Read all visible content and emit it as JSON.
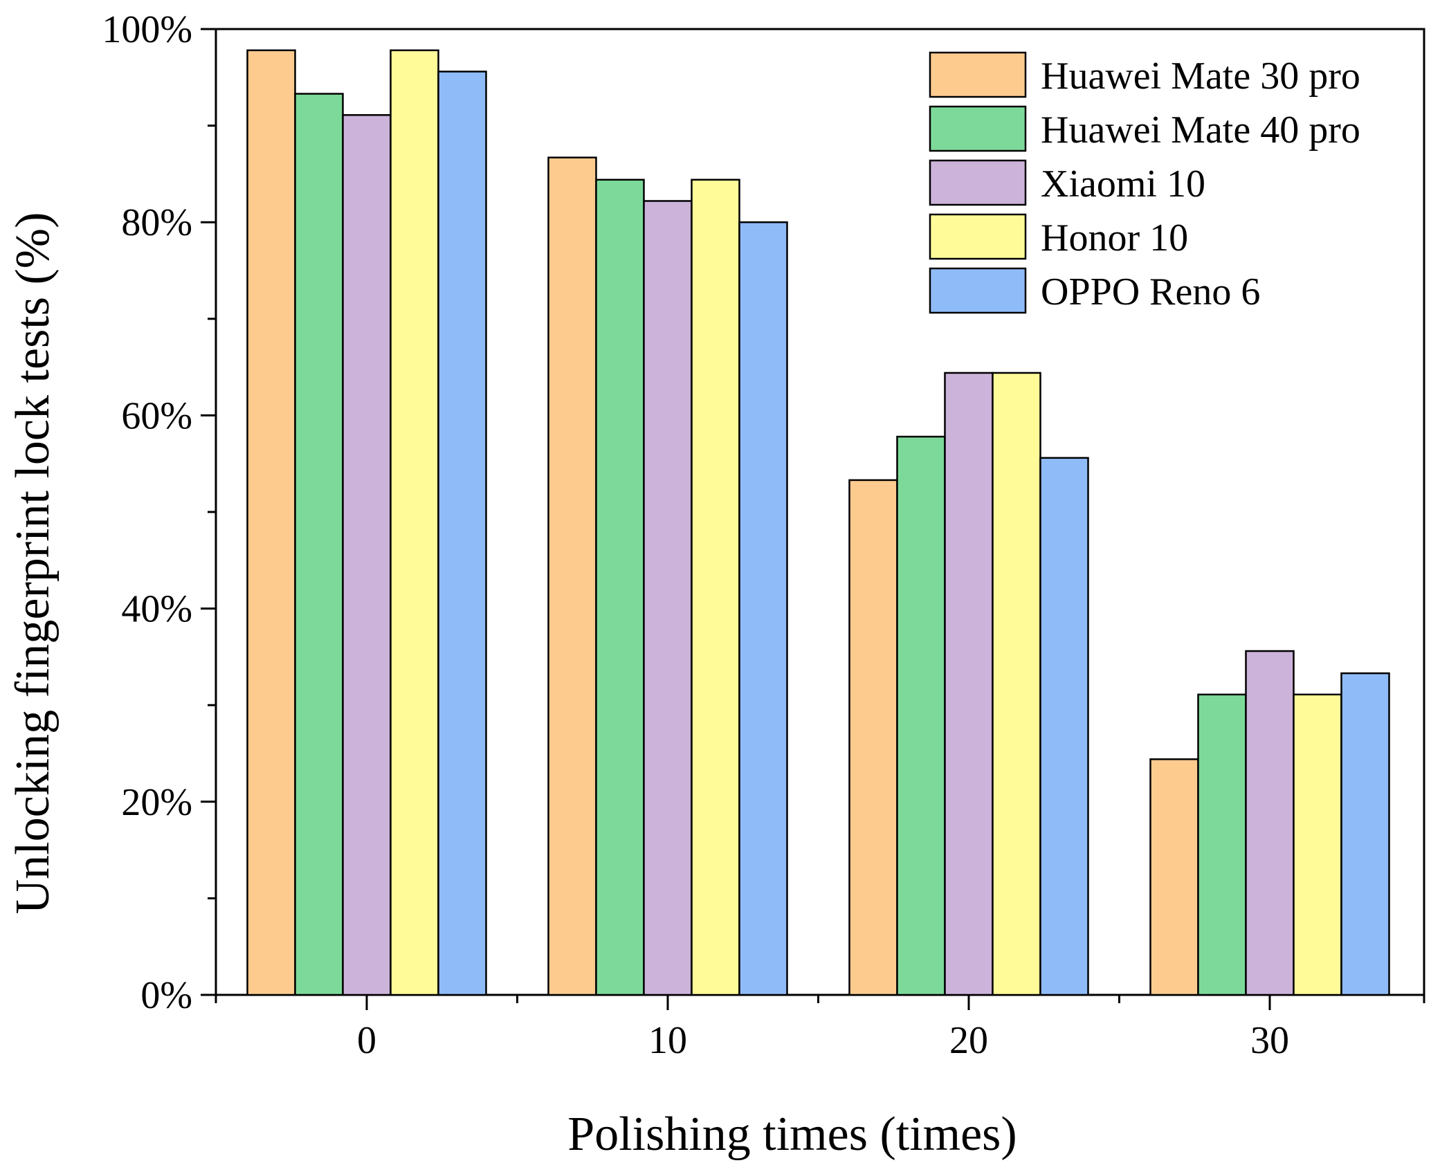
{
  "chart_data": {
    "type": "bar",
    "title": "",
    "xlabel": "Polishing times (times)",
    "ylabel": "Unlocking fingerprint lock tests (%)",
    "categories": [
      "0",
      "10",
      "20",
      "30"
    ],
    "ylim": [
      0,
      100
    ],
    "yticks": [
      0,
      20,
      40,
      60,
      80,
      100
    ],
    "ytick_labels": [
      "0%",
      "20%",
      "40%",
      "60%",
      "80%",
      "100%"
    ],
    "legend_position": "top-right",
    "series": [
      {
        "name": "Huawei Mate 30 pro",
        "color": "#FECB8F",
        "values": [
          97.8,
          86.7,
          53.3,
          24.4
        ]
      },
      {
        "name": "Huawei Mate 40 pro",
        "color": "#7DD99A",
        "values": [
          93.3,
          84.4,
          57.8,
          31.1
        ]
      },
      {
        "name": "Xiaomi 10",
        "color": "#CCB3D9",
        "values": [
          91.1,
          82.2,
          64.4,
          35.6
        ]
      },
      {
        "name": "Honor 10",
        "color": "#FFFB99",
        "values": [
          97.8,
          84.4,
          64.4,
          31.1
        ]
      },
      {
        "name": "OPPO Reno 6",
        "color": "#8FBCF8",
        "values": [
          95.6,
          80.0,
          55.6,
          33.3
        ]
      }
    ]
  }
}
